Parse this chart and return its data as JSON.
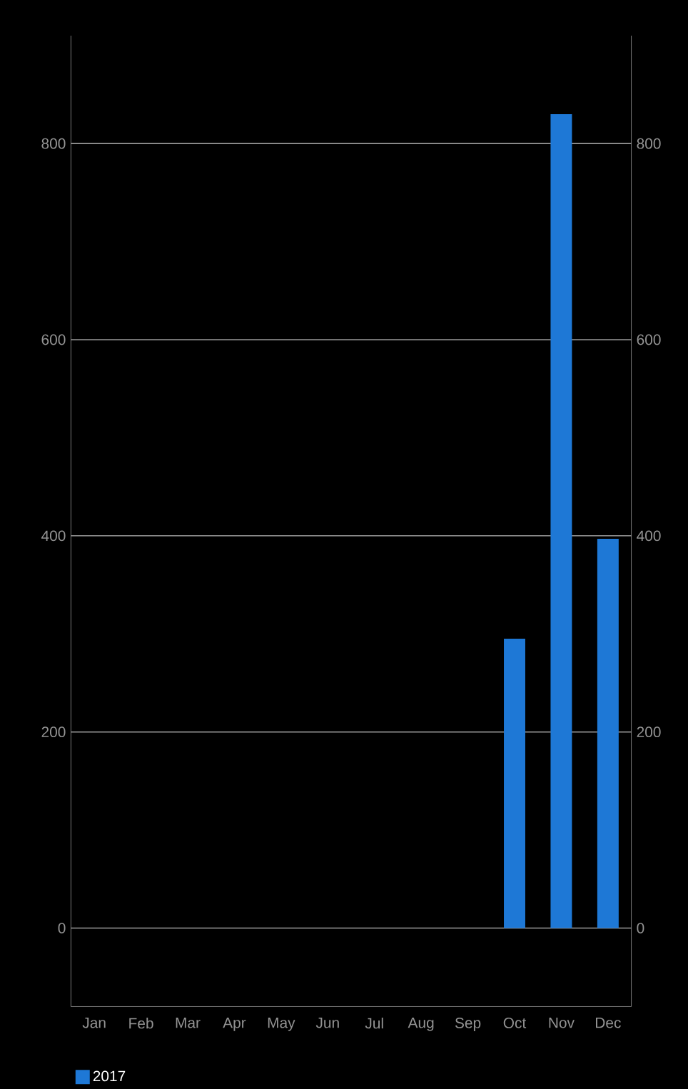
{
  "chart_data": {
    "type": "bar",
    "categories": [
      "Jan",
      "Feb",
      "Mar",
      "Apr",
      "May",
      "Jun",
      "Jul",
      "Aug",
      "Sep",
      "Oct",
      "Nov",
      "Dec"
    ],
    "series": [
      {
        "name": "2017",
        "color": "#1e78d6",
        "values": [
          null,
          null,
          null,
          null,
          null,
          null,
          null,
          null,
          null,
          295,
          830,
          397
        ]
      }
    ],
    "ylim": [
      -80,
      910
    ],
    "yticks": [
      0,
      200,
      400,
      600,
      800
    ],
    "y2lim": [
      -80,
      910
    ],
    "y2ticks": [
      0,
      200,
      400,
      600,
      800
    ],
    "grid": "y",
    "legend": "bottom left"
  }
}
